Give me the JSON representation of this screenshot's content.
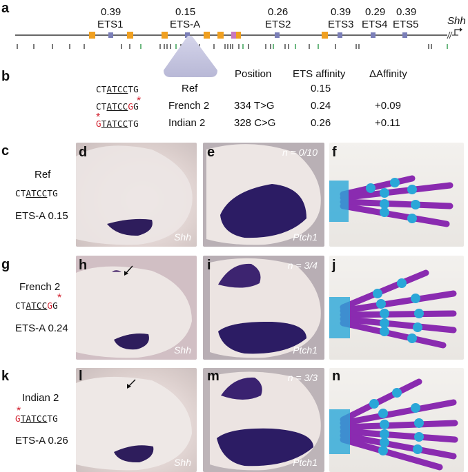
{
  "panel_a": {
    "label": "a",
    "gene": "Shh",
    "sites": [
      {
        "name": "ETS1",
        "value": "0.39"
      },
      {
        "name": "ETS-A",
        "value": "0.15"
      },
      {
        "name": "ETS2",
        "value": "0.26"
      },
      {
        "name": "ETS3",
        "value": "0.39"
      },
      {
        "name": "ETS4",
        "value": "0.29"
      },
      {
        "name": "ETS5",
        "value": "0.39"
      }
    ],
    "colors": {
      "ets_box": "#7b7fb8",
      "orange_box": "#f0a020",
      "pink_box": "#c878c0",
      "green_tick": "#2e9a4a"
    }
  },
  "panel_b": {
    "label": "b",
    "headers": {
      "position": "Position",
      "affinity": "ETS affinity",
      "delta": "ΔAffinity"
    },
    "rows": [
      {
        "seq_pre": "CT",
        "seq_ul": "ATCC",
        "seq_mut": "",
        "seq_post": "TG",
        "name": "Ref",
        "position": "",
        "affinity": "0.15",
        "delta": ""
      },
      {
        "seq_pre": "CT",
        "seq_ul": "ATCC",
        "seq_mut": "G",
        "seq_post": "G",
        "name": "French 2",
        "position": "334 T>G",
        "affinity": "0.24",
        "delta": "+0.09"
      },
      {
        "seq_pre": "G",
        "seq_ul": "TATCC",
        "seq_mut": "",
        "seq_post": "TG",
        "name": "Indian 2",
        "position": "328 C>G",
        "affinity": "0.26",
        "delta": "+0.11"
      }
    ]
  },
  "rows": [
    {
      "label": "c",
      "name": "Ref",
      "seq_a": "CT",
      "seq_ul": "ATCC",
      "seq_b": "TG",
      "site": "ETS-A 0.15",
      "panels": {
        "d": "d",
        "e": "e",
        "f": "f"
      },
      "shh": "Shh",
      "ptch": "Ptch1",
      "n": "n = 0/10"
    },
    {
      "label": "g",
      "name": "French 2",
      "seq_a": "CT",
      "seq_ul": "ATCC",
      "seq_b": "G",
      "site": "ETS-A 0.24",
      "panels": {
        "d": "h",
        "e": "i",
        "f": "j"
      },
      "shh": "Shh",
      "ptch": "Ptch1",
      "n": "n = 3/4"
    },
    {
      "label": "k",
      "name": "Indian 2",
      "seq_a": "",
      "seq_ul": "TATCC",
      "seq_b": "TG",
      "site": "ETS-A 0.26",
      "panels": {
        "d": "l",
        "e": "m",
        "f": "n"
      },
      "shh": "Shh",
      "ptch": "Ptch1",
      "n": "n = 3/3"
    }
  ],
  "mutation_letter": "G",
  "star": "*"
}
